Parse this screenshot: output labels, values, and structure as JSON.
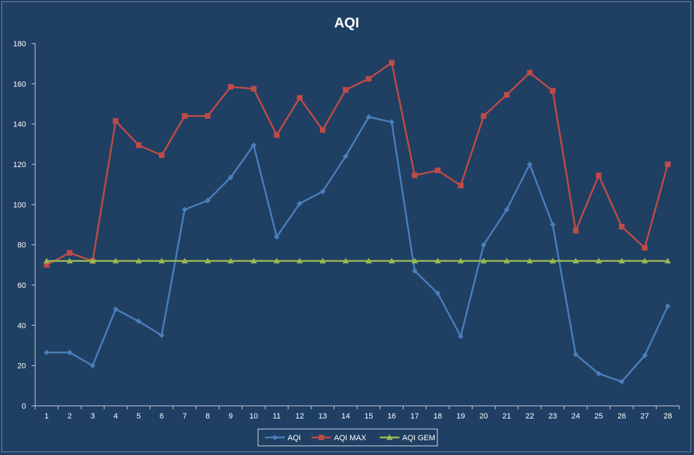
{
  "chart_data": {
    "type": "line",
    "title": "AQI",
    "xlabel": "",
    "ylabel": "",
    "ylim": [
      0,
      180
    ],
    "yticks": [
      0,
      20,
      40,
      60,
      80,
      100,
      120,
      140,
      160,
      180
    ],
    "categories": [
      "1",
      "2",
      "3",
      "4",
      "5",
      "6",
      "7",
      "8",
      "9",
      "10",
      "11",
      "12",
      "13",
      "14",
      "15",
      "16",
      "17",
      "18",
      "19",
      "20",
      "21",
      "22",
      "23",
      "24",
      "25",
      "26",
      "27",
      "28"
    ],
    "grid": false,
    "legend_position": "bottom",
    "series": [
      {
        "name": "AQI",
        "color": "#4a7ebb",
        "marker": "diamond",
        "values": [
          26.5,
          26.5,
          20,
          48,
          42,
          35,
          97.5,
          102,
          113.5,
          129.5,
          84,
          100.5,
          106.5,
          124,
          143.5,
          141,
          67,
          56,
          34.5,
          80,
          97.5,
          120,
          90,
          25.5,
          16,
          12,
          25,
          49.5
        ]
      },
      {
        "name": "AQI MAX",
        "color": "#be4b48",
        "marker": "square",
        "values": [
          70,
          76,
          72,
          141.5,
          129.5,
          124.5,
          144,
          144,
          158.5,
          157.5,
          134.5,
          153,
          137,
          157,
          162.5,
          170.5,
          114.5,
          117,
          109.5,
          144,
          154.5,
          165.5,
          156.5,
          87,
          114.5,
          89,
          78.5,
          120
        ]
      },
      {
        "name": "AQI GEM",
        "color": "#98b954",
        "marker": "triangle",
        "values": [
          72,
          72,
          72,
          72,
          72,
          72,
          72,
          72,
          72,
          72,
          72,
          72,
          72,
          72,
          72,
          72,
          72,
          72,
          72,
          72,
          72,
          72,
          72,
          72,
          72,
          72,
          72,
          72
        ]
      }
    ]
  }
}
